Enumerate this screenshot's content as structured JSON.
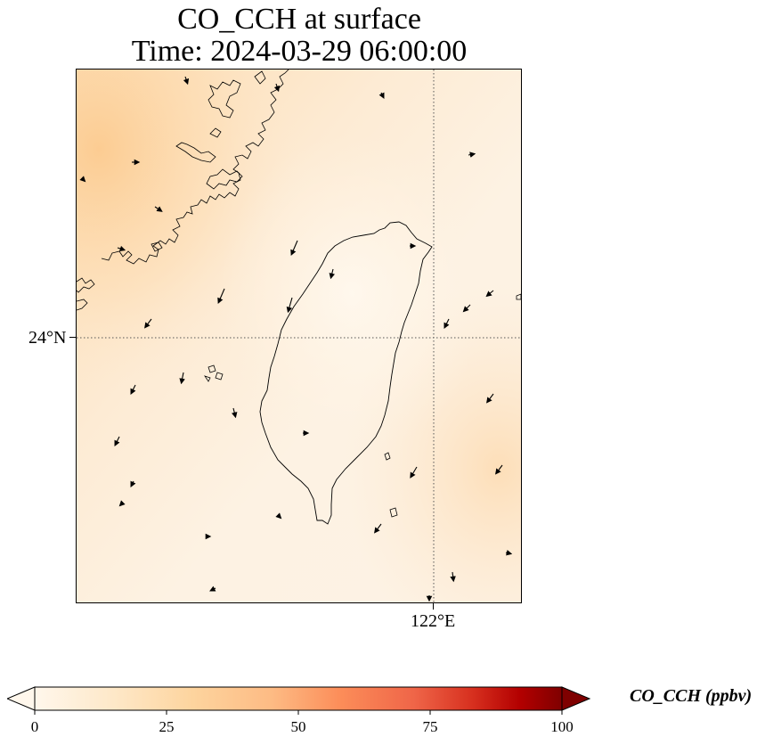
{
  "title": {
    "line1": "CO_CCH at surface",
    "line2": "Time: 2024-03-29 06:00:00"
  },
  "map": {
    "gridlines": {
      "latitude_label": "24°N",
      "longitude_label": "122°E",
      "style": "dotted"
    },
    "features": [
      "coastline",
      "wind-vectors",
      "concentration-field"
    ],
    "colors": {
      "background": "#fdf0de",
      "high_concentration": "#fccb8f",
      "coastline": "#000000"
    }
  },
  "colorbar": {
    "label": "CO_CCH (ppbv)",
    "ticks": [
      "0",
      "25",
      "50",
      "75",
      "100"
    ],
    "min": 0,
    "max": 100,
    "extend": "both",
    "colormap": "OrRd",
    "colors": {
      "low": "#fff7ec",
      "mid": "#fc8d59",
      "high": "#7f0000"
    }
  }
}
